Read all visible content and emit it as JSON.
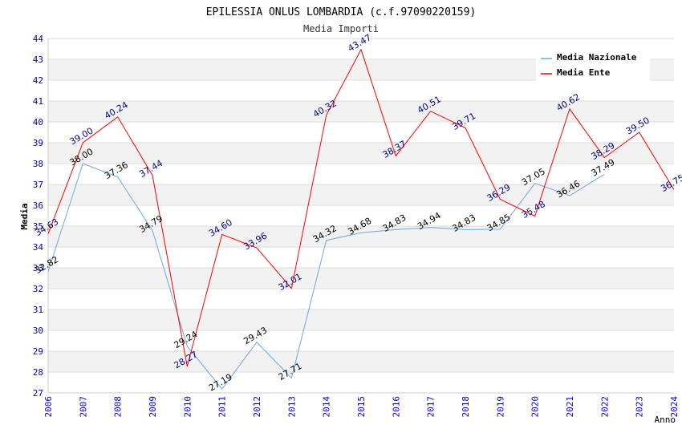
{
  "chart_data": {
    "type": "line",
    "title": "EPILESSIA ONLUS LOMBARDIA (c.f.97090220159)",
    "subtitle": "Media Importi",
    "xlabel": "Anno",
    "ylabel": "Media",
    "ylim": [
      27,
      44
    ],
    "grid": true,
    "legend_position": "top-right",
    "categories": [
      "2006",
      "2007",
      "2008",
      "2009",
      "2010",
      "2011",
      "2012",
      "2013",
      "2014",
      "2015",
      "2016",
      "2017",
      "2018",
      "2019",
      "2020",
      "2021",
      "2022",
      "2023",
      "2024"
    ],
    "y_ticks": [
      "27",
      "28",
      "29",
      "30",
      "31",
      "32",
      "33",
      "34",
      "35",
      "36",
      "37",
      "38",
      "39",
      "40",
      "41",
      "42",
      "43",
      "44"
    ],
    "series": [
      {
        "name": "Media Nazionale",
        "color": "#6fa8dc",
        "label_color": "#000000",
        "values": [
          32.82,
          38.0,
          37.36,
          34.79,
          29.24,
          27.19,
          29.43,
          27.71,
          34.32,
          34.68,
          34.83,
          34.94,
          34.83,
          34.85,
          37.05,
          36.46,
          37.49,
          null,
          null
        ],
        "labels": [
          "32.82",
          "38.00",
          "37.36",
          "34.79",
          "29.24",
          "27.19",
          "29.43",
          "27.71",
          "34.32",
          "34.68",
          "34.83",
          "34.94",
          "34.83",
          "34.85",
          "37.05",
          "36.46",
          "37.49",
          "",
          ""
        ]
      },
      {
        "name": "Media Ente",
        "color": "#ff0000",
        "label_color": "#00008b",
        "values": [
          34.63,
          39.0,
          40.24,
          37.44,
          28.27,
          34.6,
          33.96,
          32.01,
          40.32,
          43.47,
          38.37,
          40.51,
          39.71,
          36.29,
          35.48,
          40.62,
          38.29,
          39.5,
          36.75
        ],
        "labels": [
          "34.63",
          "39.00",
          "40.24",
          "37.44",
          "28.27",
          "34.60",
          "33.96",
          "32.01",
          "40.32",
          "43.47",
          "38.37",
          "40.51",
          "39.71",
          "36.29",
          "35.48",
          "40.62",
          "38.29",
          "39.50",
          "36.75"
        ]
      }
    ],
    "colors": {
      "axis_text": "#0000cc",
      "grid_band": "#f2f2f2",
      "grid_line": "#dddddd",
      "title": "#000000",
      "subtitle": "#333333"
    }
  }
}
